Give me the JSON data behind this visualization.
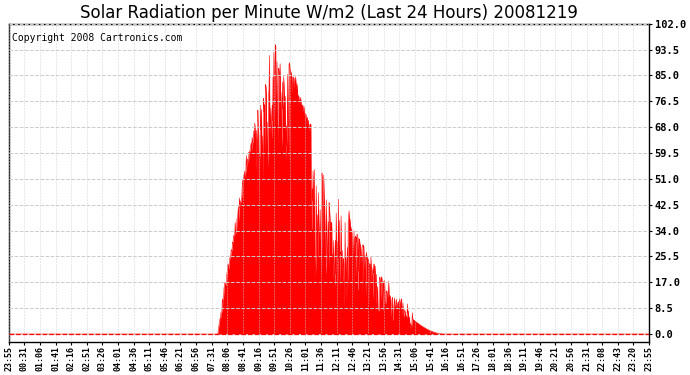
{
  "title": "Solar Radiation per Minute W/m2 (Last 24 Hours) 20081219",
  "copyright": "Copyright 2008 Cartronics.com",
  "bar_color": "#ff0000",
  "background_color": "#ffffff",
  "plot_bg_color": "#ffffff",
  "yticks": [
    0.0,
    8.5,
    17.0,
    25.5,
    34.0,
    42.5,
    51.0,
    59.5,
    68.0,
    76.5,
    85.0,
    93.5,
    102.0
  ],
  "ymin": -2.5,
  "ymax": 102.0,
  "xtick_labels": [
    "23:55",
    "00:31",
    "01:06",
    "01:41",
    "02:16",
    "02:51",
    "03:26",
    "04:01",
    "04:36",
    "05:11",
    "05:46",
    "06:21",
    "06:56",
    "07:31",
    "08:06",
    "08:41",
    "09:16",
    "09:51",
    "10:26",
    "11:01",
    "11:36",
    "12:11",
    "12:46",
    "13:21",
    "13:56",
    "14:31",
    "15:06",
    "15:41",
    "16:16",
    "16:51",
    "17:26",
    "18:01",
    "18:36",
    "19:11",
    "19:46",
    "20:21",
    "20:56",
    "21:31",
    "22:08",
    "22:43",
    "23:20",
    "23:55"
  ],
  "title_fontsize": 12,
  "copyright_fontsize": 7,
  "n_points": 1440,
  "sunrise_min": 470,
  "sunset_min": 978,
  "peak_min": 600,
  "peak_val": 102.0
}
